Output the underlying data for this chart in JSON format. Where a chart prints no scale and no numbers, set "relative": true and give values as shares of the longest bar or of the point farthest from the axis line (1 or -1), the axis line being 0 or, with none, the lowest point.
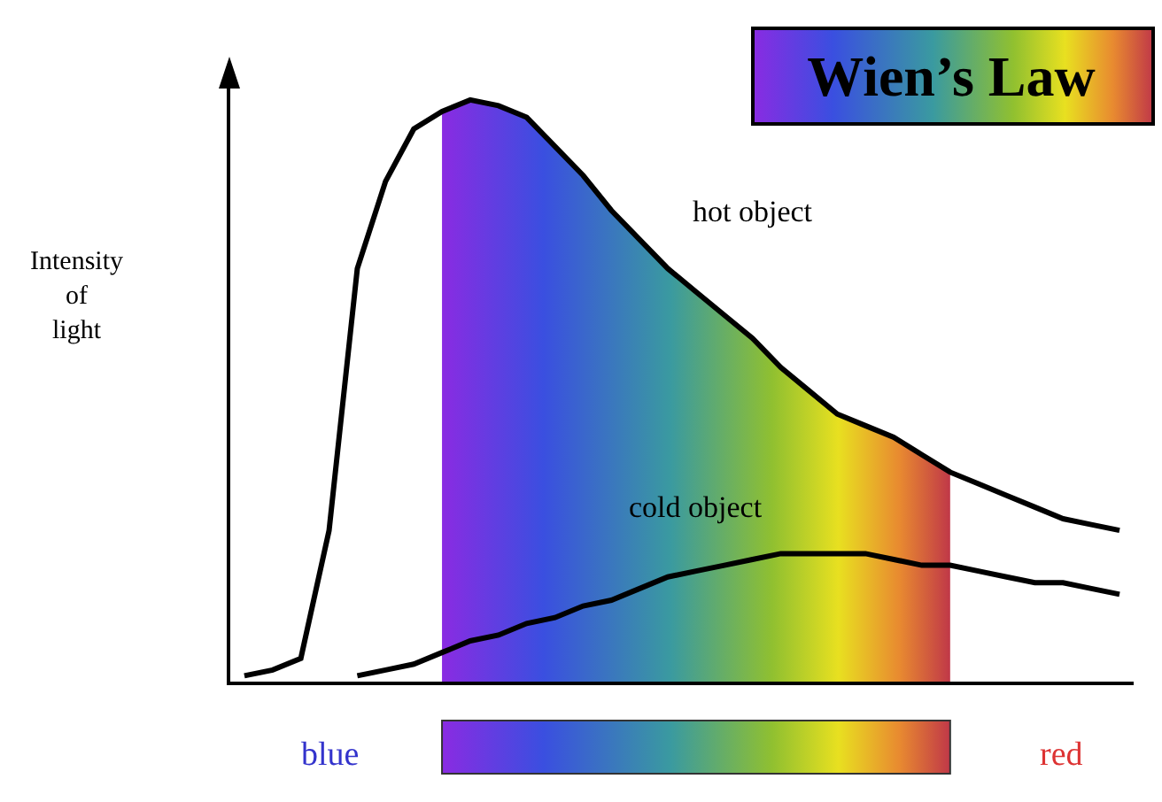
{
  "chart_data": {
    "type": "line",
    "title": "Wien’s Law",
    "ylabel": "Intensity of light",
    "relative": true,
    "legend": false,
    "grid": false,
    "marker": "none",
    "line_style": "solid",
    "categories": [
      null,
      null,
      null,
      null,
      null,
      null,
      null,
      null,
      null,
      null,
      null,
      null,
      null,
      null,
      null,
      null,
      null,
      null,
      null,
      null,
      null,
      null,
      null,
      null,
      null,
      null,
      null,
      null,
      null,
      null,
      null,
      null
    ],
    "series": [
      {
        "name": "hot object",
        "color": "#000000",
        "values": [
          0.01,
          0.02,
          0.04,
          0.26,
          0.71,
          0.86,
          0.95,
          0.98,
          1.0,
          0.99,
          0.97,
          0.92,
          0.87,
          0.81,
          0.76,
          0.71,
          0.67,
          0.63,
          0.59,
          0.54,
          0.5,
          0.46,
          0.44,
          0.42,
          0.39,
          0.36,
          0.34,
          0.32,
          0.3,
          0.28,
          0.27,
          0.26
        ]
      },
      {
        "name": "cold object",
        "color": "#000000",
        "values": [
          null,
          null,
          null,
          null,
          0.01,
          0.02,
          0.03,
          0.05,
          0.07,
          0.08,
          0.1,
          0.11,
          0.13,
          0.14,
          0.16,
          0.18,
          0.19,
          0.2,
          0.21,
          0.22,
          0.22,
          0.22,
          0.22,
          0.21,
          0.2,
          0.2,
          0.19,
          0.18,
          0.17,
          0.17,
          0.16,
          0.15
        ]
      }
    ],
    "annotations": [
      "blue",
      "red"
    ]
  }
}
